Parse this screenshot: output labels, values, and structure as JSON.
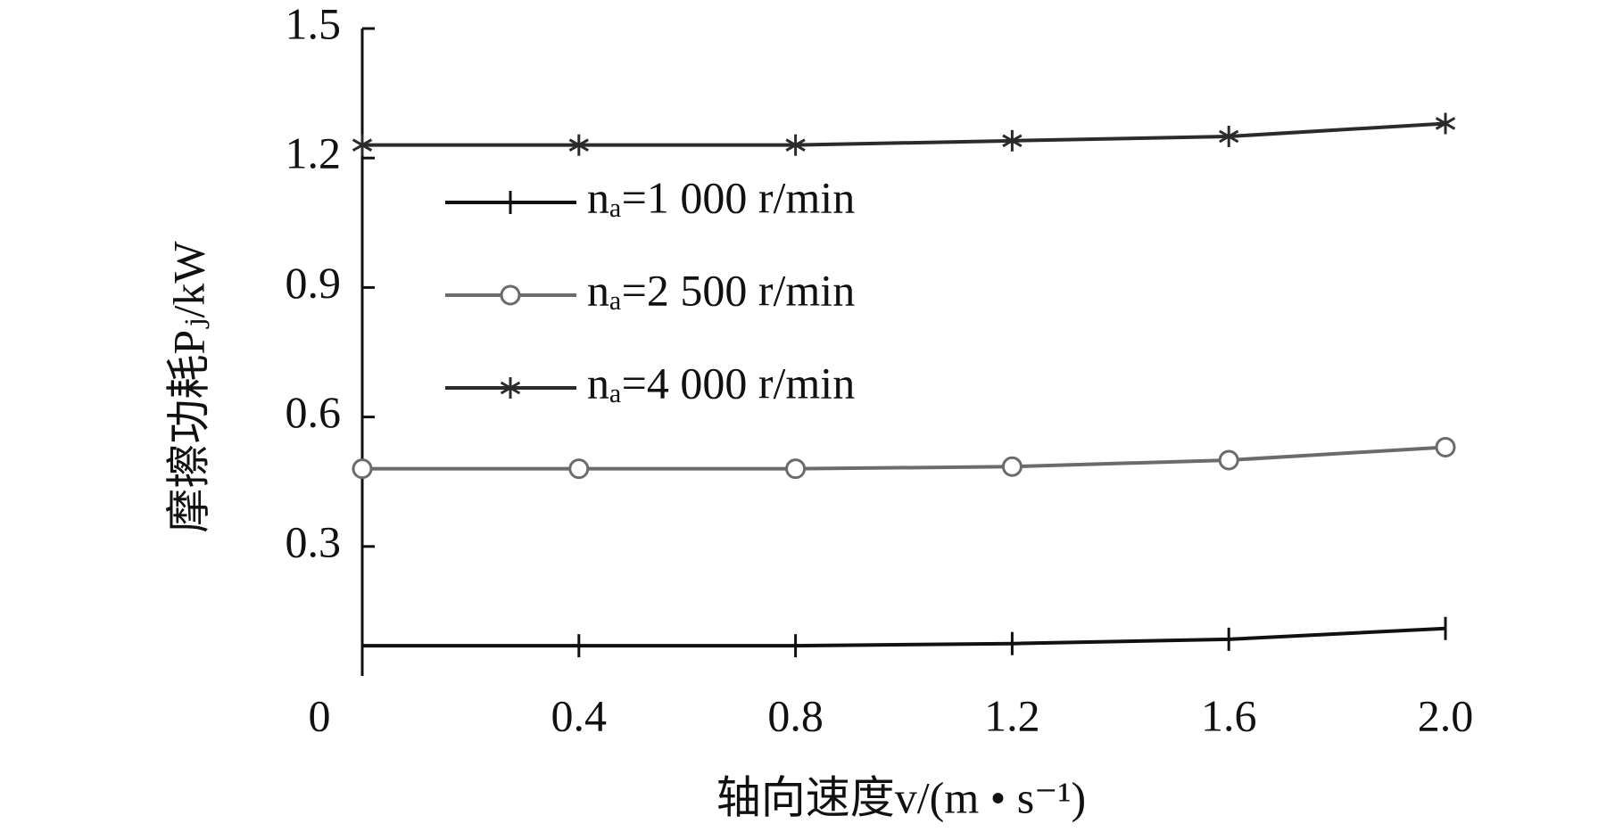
{
  "chart_data": {
    "type": "line",
    "x_label": "轴向速度v/(m • s⁻¹)",
    "y_label": "摩擦功耗Pⱼ/kW",
    "x": [
      0,
      0.4,
      0.8,
      1.2,
      1.6,
      2.0
    ],
    "series": [
      {
        "name": "nₐ=1 000 r/min",
        "color": "#111111",
        "marker": "plus",
        "values": [
          0.07,
          0.07,
          0.07,
          0.075,
          0.085,
          0.11
        ]
      },
      {
        "name": "nₐ=2 500 r/min",
        "color": "#6b6b6b",
        "marker": "circle",
        "values": [
          0.48,
          0.48,
          0.48,
          0.485,
          0.5,
          0.53
        ]
      },
      {
        "name": "nₐ=4 000 r/min",
        "color": "#2b2b2b",
        "marker": "asterisk",
        "values": [
          1.23,
          1.23,
          1.23,
          1.24,
          1.25,
          1.28
        ]
      }
    ],
    "xlim": [
      0,
      2.0
    ],
    "ylim": [
      0,
      1.5
    ],
    "xticks": [
      0,
      0.4,
      0.8,
      1.2,
      1.6,
      {
        "value": 2.0,
        "label": "2.0"
      }
    ],
    "yticks": [
      0.3,
      0.6,
      0.9,
      1.2,
      1.5
    ],
    "grid": false,
    "legend": "upper left"
  }
}
